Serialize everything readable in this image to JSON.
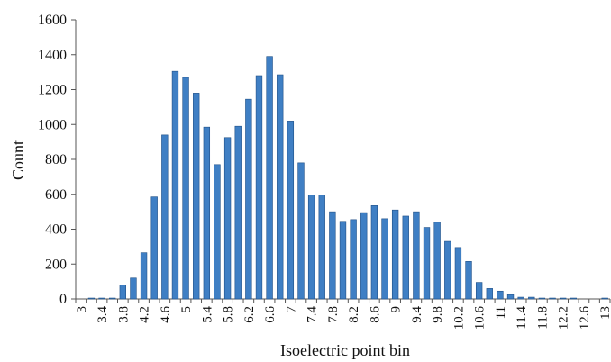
{
  "chart_data": {
    "type": "bar",
    "xlabel": "Isoelectric point bin",
    "ylabel": "Count",
    "ylim": [
      0,
      1600
    ],
    "yticks": [
      0,
      200,
      400,
      600,
      800,
      1000,
      1200,
      1400,
      1600
    ],
    "bar_color": "#3f7fc4",
    "bar_edge_color": "#1f4f86",
    "grid": false,
    "legend": "none",
    "categories": [
      "3",
      "3.2",
      "3.4",
      "3.6",
      "3.8",
      "4",
      "4.2",
      "4.4",
      "4.6",
      "4.8",
      "5",
      "5.2",
      "5.4",
      "5.6",
      "5.8",
      "6",
      "6.2",
      "6.4",
      "6.6",
      "6.8",
      "7",
      "7.2",
      "7.4",
      "7.6",
      "7.8",
      "8",
      "8.2",
      "8.4",
      "8.6",
      "8.8",
      "9",
      "9.2",
      "9.4",
      "9.6",
      "9.8",
      "10",
      "10.2",
      "10.4",
      "10.6",
      "10.8",
      "11",
      "11.2",
      "11.4",
      "11.6",
      "11.8",
      "12",
      "12.2",
      "12.4",
      "12.6",
      "12.8",
      "13"
    ],
    "tick_labels": [
      "3",
      "3.4",
      "3.8",
      "4.2",
      "4.6",
      "5",
      "5.4",
      "5.8",
      "6.2",
      "6.6",
      "7",
      "7.4",
      "7.8",
      "8.2",
      "8.6",
      "9",
      "9.4",
      "9.8",
      "10.2",
      "10.6",
      "11",
      "11.4",
      "11.8",
      "12.2",
      "12.6",
      "13"
    ],
    "values": [
      0,
      5,
      5,
      5,
      80,
      120,
      265,
      585,
      940,
      1305,
      1270,
      1180,
      985,
      770,
      925,
      990,
      1145,
      1280,
      1390,
      1285,
      1020,
      780,
      595,
      595,
      500,
      445,
      455,
      495,
      535,
      460,
      510,
      475,
      500,
      410,
      440,
      330,
      295,
      215,
      95,
      60,
      45,
      25,
      10,
      10,
      5,
      5,
      5,
      5,
      0,
      0,
      5
    ]
  }
}
